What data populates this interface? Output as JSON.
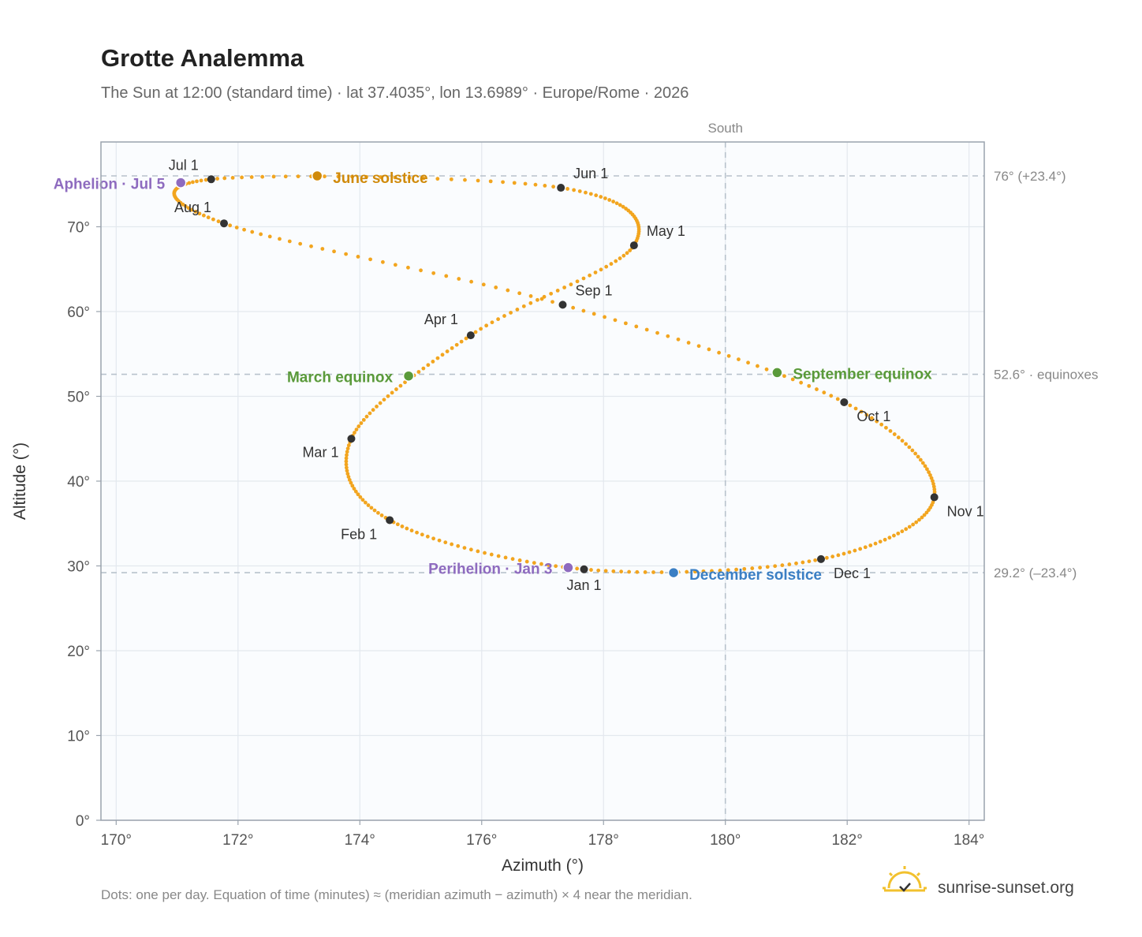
{
  "chart_data": {
    "type": "scatter",
    "title": "Grotte Analemma",
    "subtitle": "The Sun at 12:00 (standard time) · lat 37.4035°, lon 13.6989° · Europe/Rome · 2026",
    "xlabel": "Azimuth (°)",
    "ylabel": "Altitude (°)",
    "xlim": [
      169.75,
      184.25
    ],
    "ylim": [
      0,
      80
    ],
    "x_ticks": [
      170,
      172,
      174,
      176,
      178,
      180,
      182,
      184
    ],
    "x_tick_labels": [
      "170°",
      "172°",
      "174°",
      "176°",
      "178°",
      "180°",
      "182°",
      "184°"
    ],
    "y_ticks": [
      0,
      10,
      20,
      30,
      40,
      50,
      60,
      70
    ],
    "y_tick_labels": [
      "0°",
      "10°",
      "20°",
      "30°",
      "40°",
      "50°",
      "60°",
      "70°"
    ],
    "grid": true,
    "meridian": {
      "x": 180,
      "label": "South"
    },
    "reference_lines": [
      {
        "y": 76.0,
        "label": "76° (+23.4°)"
      },
      {
        "y": 52.6,
        "label": "52.6° · equinoxes"
      },
      {
        "y": 29.2,
        "label": "29.2° (–23.4°)"
      }
    ],
    "series_color": "#f2a51f",
    "month_marker_color": "#333333",
    "months": [
      {
        "label": "Jan 1",
        "az": 177.68,
        "alt": 29.6
      },
      {
        "label": "Feb 1",
        "az": 174.49,
        "alt": 35.4
      },
      {
        "label": "Mar 1",
        "az": 173.86,
        "alt": 45.0
      },
      {
        "label": "Apr 1",
        "az": 175.82,
        "alt": 57.2
      },
      {
        "label": "May 1",
        "az": 178.5,
        "alt": 67.8
      },
      {
        "label": "Jun 1",
        "az": 177.3,
        "alt": 74.6
      },
      {
        "label": "Jul 1",
        "az": 171.56,
        "alt": 75.6
      },
      {
        "label": "Aug 1",
        "az": 171.77,
        "alt": 70.4
      },
      {
        "label": "Sep 1",
        "az": 177.33,
        "alt": 60.8
      },
      {
        "label": "Oct 1",
        "az": 181.95,
        "alt": 49.3
      },
      {
        "label": "Nov 1",
        "az": 183.43,
        "alt": 38.1
      },
      {
        "label": "Dec 1",
        "az": 181.57,
        "alt": 30.8
      }
    ],
    "events": [
      {
        "label": "March equinox",
        "az": 174.8,
        "alt": 52.4,
        "color": "#5a9a3a"
      },
      {
        "label": "June solstice",
        "az": 173.3,
        "alt": 76.0,
        "color": "#d08a0a"
      },
      {
        "label": "September equinox",
        "az": 180.85,
        "alt": 52.8,
        "color": "#5a9a3a"
      },
      {
        "label": "December solstice",
        "az": 179.15,
        "alt": 29.2,
        "color": "#3b7fc4"
      },
      {
        "label": "Perihelion · Jan 3",
        "az": 177.42,
        "alt": 29.8,
        "color": "#8e6bbf"
      },
      {
        "label": "Aphelion · Jul 5",
        "az": 171.06,
        "alt": 75.2,
        "color": "#8e6bbf"
      }
    ]
  },
  "footer_note": "Dots: one per day. Equation of time (minutes) ≈ (meridian azimuth − azimuth) × 4 near the meridian.",
  "brand": "sunrise-sunset.org"
}
